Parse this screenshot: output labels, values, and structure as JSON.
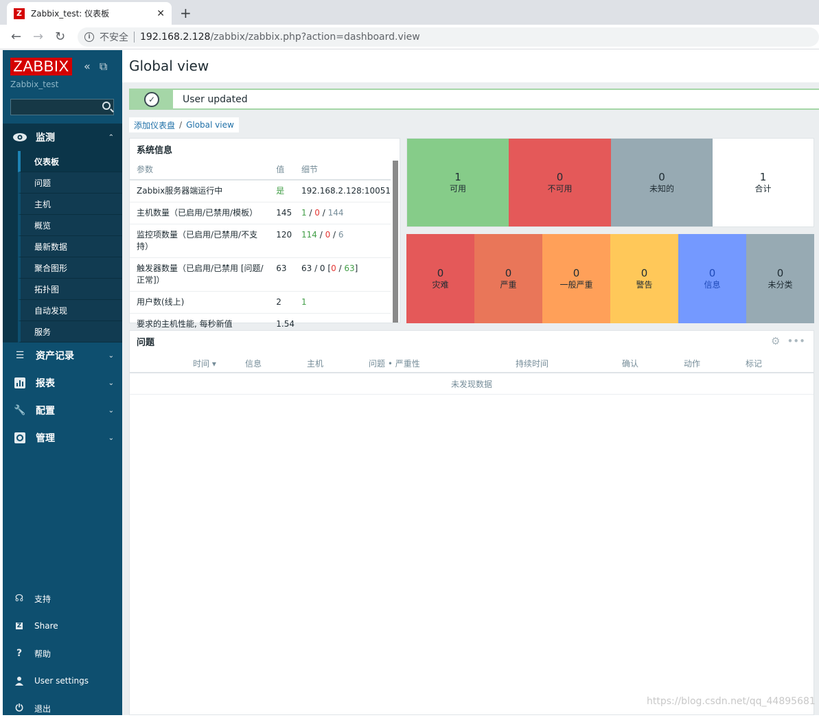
{
  "browser": {
    "tab_title": "Zabbix_test: 仪表板",
    "tab_favicon": "Z",
    "insecure_label": "不安全",
    "url_host": "192.168.2.128",
    "url_path": "/zabbix/zabbix.php?action=dashboard.view"
  },
  "sidebar": {
    "logo": "ZABBIX",
    "server_name": "Zabbix_test",
    "search_placeholder": "",
    "monitoring": {
      "label": "监测",
      "items": [
        {
          "label": "仪表板",
          "active": true
        },
        {
          "label": "问题"
        },
        {
          "label": "主机"
        },
        {
          "label": "概览"
        },
        {
          "label": "最新数据"
        },
        {
          "label": "聚合图形"
        },
        {
          "label": "拓扑图"
        },
        {
          "label": "自动发现"
        },
        {
          "label": "服务"
        }
      ]
    },
    "sections": [
      {
        "label": "资产记录",
        "icon": "list-icon"
      },
      {
        "label": "报表",
        "icon": "chart-icon"
      },
      {
        "label": "配置",
        "icon": "wrench-icon"
      },
      {
        "label": "管理",
        "icon": "gear-icon"
      }
    ],
    "footer": [
      {
        "label": "支持",
        "icon": "headset-icon"
      },
      {
        "label": "Share",
        "icon": "zabbix-share-icon"
      },
      {
        "label": "帮助",
        "icon": "help-icon"
      },
      {
        "label": "User settings",
        "icon": "user-icon"
      },
      {
        "label": "退出",
        "icon": "power-icon"
      }
    ]
  },
  "main": {
    "title": "Global view",
    "message": "User updated",
    "breadcrumb": {
      "parent": "添加仪表盘",
      "current": "Global view"
    }
  },
  "system_info": {
    "title": "系统信息",
    "headers": {
      "param": "参数",
      "value": "值",
      "details": "细节"
    },
    "rows": {
      "r1": {
        "param": "Zabbix服务器端运行中",
        "value": "是",
        "detail": "192.168.2.128:10051"
      },
      "r2": {
        "param": "主机数量（已启用/已禁用/模板）",
        "value": "145",
        "d1": "1",
        "d2": "0",
        "d3": "144"
      },
      "r3": {
        "param": "监控项数量（已启用/已禁用/不支持）",
        "value": "120",
        "d1": "114",
        "d2": "0",
        "d3": "6"
      },
      "r4": {
        "param": "触发器数量（已启用/已禁用 [问题/正常]）",
        "value": "63",
        "d1": "63 / 0 [",
        "d2": "0",
        "d3": "63",
        "d4": "]"
      },
      "r5": {
        "param": "用户数(线上)",
        "value": "2",
        "detail": "1"
      },
      "r6": {
        "param": "要求的主机性能, 每秒新值",
        "value": "1.54",
        "detail": ""
      }
    }
  },
  "host_availability": [
    {
      "count": "1",
      "label": "可用",
      "color": "#86cc89"
    },
    {
      "count": "0",
      "label": "不可用",
      "color": "#e45959"
    },
    {
      "count": "0",
      "label": "未知的",
      "color": "#97aab3"
    },
    {
      "count": "1",
      "label": "合计",
      "color": "#ffffff"
    }
  ],
  "problems_by_severity": [
    {
      "count": "0",
      "label": "灾难",
      "color": "#e45959"
    },
    {
      "count": "0",
      "label": "严重",
      "color": "#e97659"
    },
    {
      "count": "0",
      "label": "一般严重",
      "color": "#ffa059"
    },
    {
      "count": "0",
      "label": "警告",
      "color": "#ffc859"
    },
    {
      "count": "0",
      "label": "信息",
      "color": "#7499ff"
    },
    {
      "count": "0",
      "label": "未分类",
      "color": "#97aab3"
    }
  ],
  "problems": {
    "title": "问题",
    "columns": {
      "time": "时间 ▾",
      "info": "信息",
      "host": "主机",
      "problem": "问题 • 严重性",
      "duration": "持续时间",
      "ack": "确认",
      "actions": "动作",
      "tags": "标记"
    },
    "empty": "未发现数据"
  },
  "watermark": "https://blog.csdn.net/qq_44895681"
}
